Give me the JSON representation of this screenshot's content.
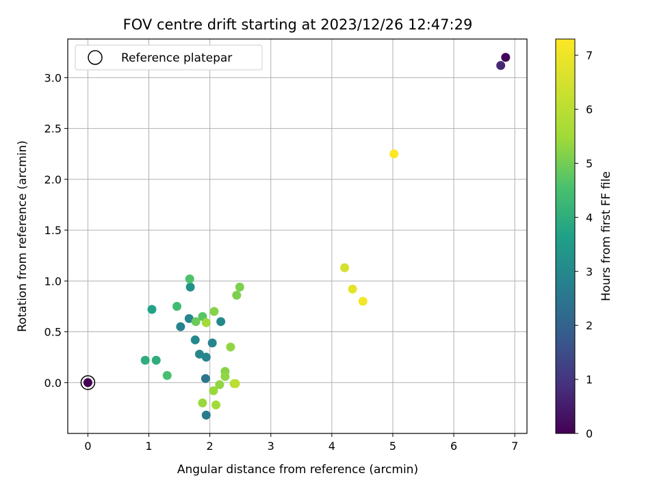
{
  "chart_data": {
    "type": "scatter",
    "title": "FOV centre drift starting at 2023/12/26 12:47:29",
    "xlabel": "Angular distance from reference (arcmin)",
    "ylabel": "Rotation from reference (arcmin)",
    "xlim": [
      -0.33,
      7.2
    ],
    "ylim": [
      -0.5,
      3.38
    ],
    "x_ticks": [
      0,
      1,
      2,
      3,
      4,
      5,
      6,
      7
    ],
    "x_tick_labels": [
      "0",
      "1",
      "2",
      "3",
      "4",
      "5",
      "6",
      "7"
    ],
    "y_ticks": [
      0.0,
      0.5,
      1.0,
      1.5,
      2.0,
      2.5,
      3.0
    ],
    "y_tick_labels": [
      "0.0",
      "0.5",
      "1.0",
      "1.5",
      "2.0",
      "2.5",
      "3.0"
    ],
    "grid": true,
    "legend": {
      "position": "top-left",
      "entries": [
        "Reference platepar"
      ]
    },
    "colorbar": {
      "label": "Hours from first FF file",
      "range": [
        0,
        7.3
      ],
      "ticks": [
        0,
        1,
        2,
        3,
        4,
        5,
        6,
        7
      ],
      "tick_labels": [
        "0",
        "1",
        "2",
        "3",
        "4",
        "5",
        "6",
        "7"
      ],
      "colormap": "viridis"
    },
    "reference_point": {
      "x": 0,
      "y": 0
    },
    "points": [
      {
        "x": 0.0,
        "y": 0.0,
        "c": 0.0
      },
      {
        "x": 6.85,
        "y": 3.2,
        "c": 0.1
      },
      {
        "x": 6.77,
        "y": 3.12,
        "c": 0.7
      },
      {
        "x": 1.93,
        "y": 0.04,
        "c": 2.5
      },
      {
        "x": 1.94,
        "y": -0.32,
        "c": 2.6
      },
      {
        "x": 1.52,
        "y": 0.55,
        "c": 2.8
      },
      {
        "x": 1.66,
        "y": 0.63,
        "c": 2.9
      },
      {
        "x": 1.94,
        "y": 0.25,
        "c": 2.9
      },
      {
        "x": 2.04,
        "y": 0.39,
        "c": 2.9
      },
      {
        "x": 1.76,
        "y": 0.42,
        "c": 3.0
      },
      {
        "x": 1.83,
        "y": 0.28,
        "c": 3.0
      },
      {
        "x": 2.18,
        "y": 0.6,
        "c": 3.0
      },
      {
        "x": 1.68,
        "y": 0.94,
        "c": 3.2
      },
      {
        "x": 1.05,
        "y": 0.72,
        "c": 3.7
      },
      {
        "x": 0.94,
        "y": 0.22,
        "c": 4.0
      },
      {
        "x": 1.12,
        "y": 0.22,
        "c": 4.0
      },
      {
        "x": 1.46,
        "y": 0.75,
        "c": 4.4
      },
      {
        "x": 1.3,
        "y": 0.07,
        "c": 4.5
      },
      {
        "x": 1.67,
        "y": 1.02,
        "c": 4.6
      },
      {
        "x": 1.88,
        "y": 0.65,
        "c": 4.7
      },
      {
        "x": 1.77,
        "y": 0.6,
        "c": 4.9
      },
      {
        "x": 2.07,
        "y": 0.7,
        "c": 5.2
      },
      {
        "x": 1.94,
        "y": 0.59,
        "c": 5.5
      },
      {
        "x": 2.44,
        "y": 0.86,
        "c": 5.1
      },
      {
        "x": 2.49,
        "y": 0.94,
        "c": 5.1
      },
      {
        "x": 2.34,
        "y": 0.35,
        "c": 5.3
      },
      {
        "x": 2.25,
        "y": 0.11,
        "c": 5.2
      },
      {
        "x": 2.25,
        "y": 0.06,
        "c": 5.3
      },
      {
        "x": 2.16,
        "y": -0.02,
        "c": 5.3
      },
      {
        "x": 2.06,
        "y": -0.08,
        "c": 5.4
      },
      {
        "x": 1.88,
        "y": -0.2,
        "c": 5.4
      },
      {
        "x": 2.1,
        "y": -0.22,
        "c": 5.5
      },
      {
        "x": 2.4,
        "y": -0.01,
        "c": 5.8
      },
      {
        "x": 2.42,
        "y": -0.01,
        "c": 6.0
      },
      {
        "x": 4.21,
        "y": 1.13,
        "c": 6.5
      },
      {
        "x": 4.34,
        "y": 0.92,
        "c": 6.8
      },
      {
        "x": 4.51,
        "y": 0.8,
        "c": 7.1
      },
      {
        "x": 5.02,
        "y": 2.25,
        "c": 7.3
      }
    ]
  }
}
